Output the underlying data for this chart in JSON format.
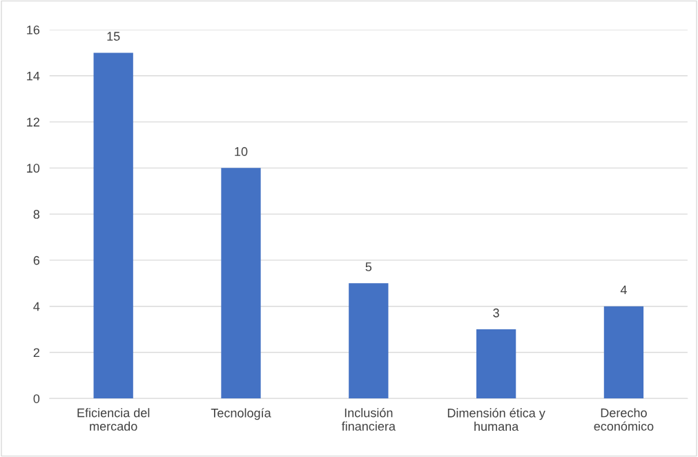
{
  "chart_data": {
    "type": "bar",
    "categories": [
      "Eficiencia del\nmercado",
      "Tecnología",
      "Inclusión\nfinanciera",
      "Dimensión ética y\nhumana",
      "Derecho\neconómico"
    ],
    "values": [
      15,
      10,
      5,
      3,
      4
    ],
    "color": "#4472c4",
    "ylim": [
      0,
      16
    ],
    "yticks": [
      0,
      2,
      4,
      6,
      8,
      10,
      12,
      14,
      16
    ],
    "grid": "y",
    "data_labels": true,
    "legend": false
  }
}
